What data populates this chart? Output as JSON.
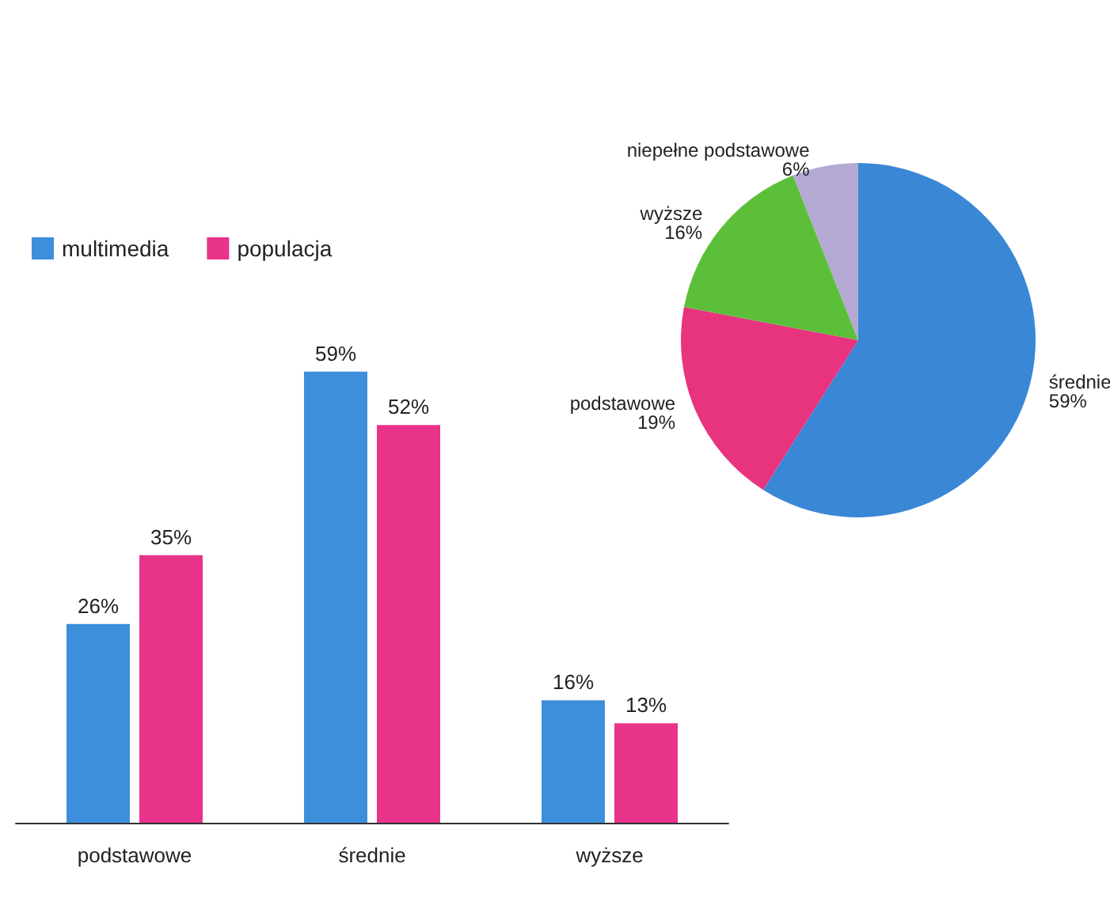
{
  "chart_data": [
    {
      "type": "bar",
      "categories": [
        "podstawowe",
        "średnie",
        "wyższe"
      ],
      "series": [
        {
          "name": "multimedia",
          "color": "#3d8fdc",
          "values": [
            26,
            59,
            16
          ],
          "value_labels": [
            "26%",
            "59%",
            "16%"
          ]
        },
        {
          "name": "populacja",
          "color": "#e8338a",
          "values": [
            35,
            52,
            13
          ],
          "value_labels": [
            "35%",
            "52%",
            "13%"
          ]
        }
      ],
      "legend": "top left"
    },
    {
      "type": "pie",
      "categories": [
        "średnie",
        "podstawowe",
        "wyższe",
        "niepełne podstawowe"
      ],
      "values": [
        59,
        19,
        16,
        6
      ],
      "value_labels": [
        "59%",
        "19%",
        "16%",
        "6%"
      ],
      "colors": [
        "#3a87d6",
        "#e8337f",
        "#5cbf3a",
        "#b3a9d3"
      ]
    }
  ]
}
